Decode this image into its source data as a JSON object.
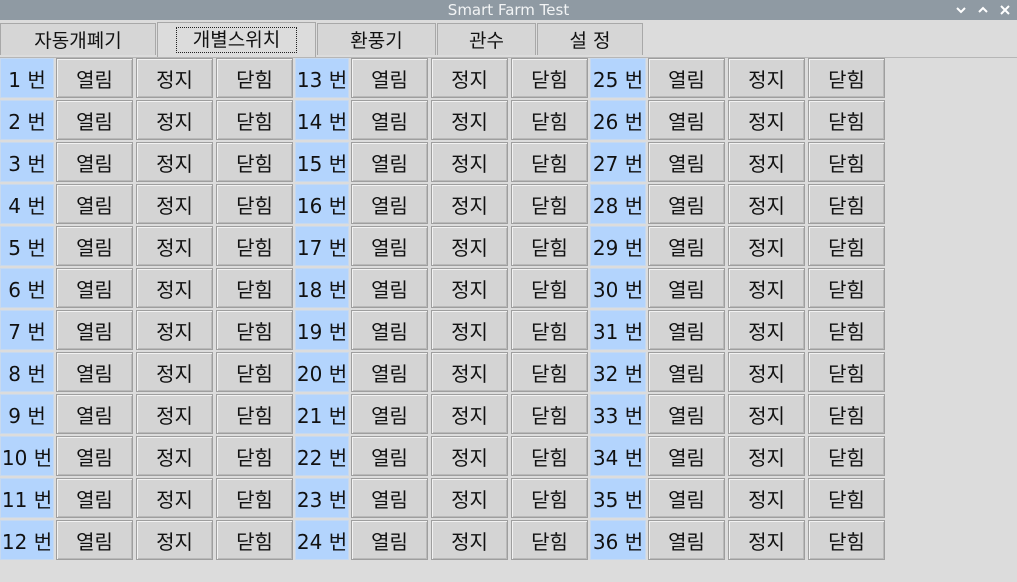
{
  "window": {
    "title": "Smart Farm Test"
  },
  "window_controls": [
    "minimize-icon",
    "maximize-icon",
    "close-icon"
  ],
  "tabs": [
    {
      "label": "자동개폐기",
      "active": false
    },
    {
      "label": "개별스위치",
      "active": true
    },
    {
      "label": "환풍기",
      "active": false
    },
    {
      "label": "관수",
      "active": false
    },
    {
      "label": "설 정",
      "active": false
    }
  ],
  "actions": {
    "open": "열림",
    "stop": "정지",
    "close": "닫힘"
  },
  "switches": [
    "1 번",
    "2 번",
    "3 번",
    "4 번",
    "5 번",
    "6 번",
    "7 번",
    "8 번",
    "9 번",
    "10 번",
    "11 번",
    "12 번",
    "13 번",
    "14 번",
    "15 번",
    "16 번",
    "17 번",
    "18 번",
    "19 번",
    "20 번",
    "21 번",
    "22 번",
    "23 번",
    "24 번",
    "25 번",
    "26 번",
    "27 번",
    "28 번",
    "29 번",
    "30 번",
    "31 번",
    "32 번",
    "33 번",
    "34 번",
    "35 번",
    "36 번"
  ],
  "colors": {
    "label_bg": "#b3d4fd",
    "button_bg": "#d4d4d4",
    "titlebar_bg": "#8f9aa3"
  }
}
